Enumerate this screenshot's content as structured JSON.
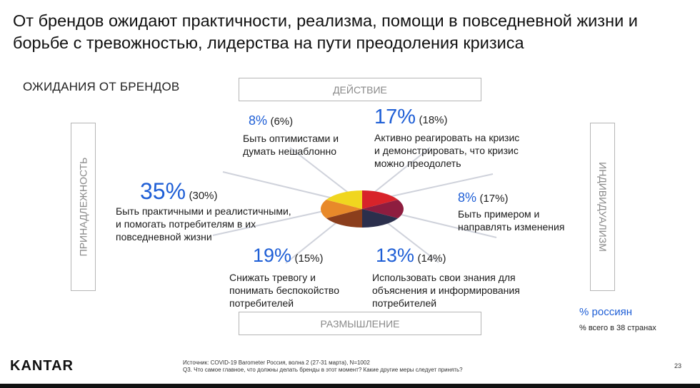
{
  "title": {
    "line1": "От брендов ожидают практичности, реализма, помощи в повседневной жизни и",
    "line2": "борьбе с тревожностью, лидерства на пути преодоления кризиса"
  },
  "section_label": "ОЖИДАНИЯ ОТ БРЕНДОВ",
  "axes": {
    "top": "ДЕЙСТВИЕ",
    "bottom": "РАЗМЫШЛЕНИЕ",
    "left": "ПРИНАДЛЕЖНОСТЬ",
    "right": "ИНДИВИДУАЛИЗМ"
  },
  "items": {
    "optimism": {
      "pct": "8%",
      "prev": "(6%)",
      "line1": "Быть оптимистами и",
      "line2": "думать нешаблонно"
    },
    "react": {
      "pct": "17%",
      "prev": "(18%)",
      "line1": "Активно реагировать на кризис",
      "line2": "и демонстрировать, что кризис",
      "line3": "можно преодолеть"
    },
    "practical": {
      "pct": "35%",
      "prev": "(30%)",
      "line1": "Быть практичными и реалистичными,",
      "line2": "и помогать потребителям в их",
      "line3": "повседневной жизни"
    },
    "example": {
      "pct": "8%",
      "prev": "(17%)",
      "line1": "Быть примером и",
      "line2": "направлять изменения"
    },
    "anxiety": {
      "pct": "19%",
      "prev": "(15%)",
      "line1": "Снижать тревогу и",
      "line2": "понимать беспокойство",
      "line3": "потребителей"
    },
    "knowledge": {
      "pct": "13%",
      "prev": "(14%)",
      "line1": "Использовать свои знания для",
      "line2": "объяснения и информирования",
      "line3": "потребителей"
    }
  },
  "pie": {
    "slices": [
      {
        "name": "react",
        "color": "#d8232a"
      },
      {
        "name": "example",
        "color": "#8e1d3f"
      },
      {
        "name": "knowledge",
        "color": "#2b2f4c"
      },
      {
        "name": "anxiety",
        "color": "#8b3e1c"
      },
      {
        "name": "practical",
        "color": "#e8892a"
      },
      {
        "name": "optimism",
        "color": "#f0d61f"
      }
    ],
    "line_color": "#cfd2db"
  },
  "legend": {
    "primary": "% россиян",
    "secondary": "% всего в 38 странах"
  },
  "footer": {
    "logo": "KANTAR",
    "source_line1": "Источник: COVID-19 Barometer Россия, волна 2 (27-31 марта), N=1002",
    "source_line2": "Q3. Что самое главное, что должны делать бренды в этот момент? Какие другие меры следует принять?",
    "page": "23"
  }
}
